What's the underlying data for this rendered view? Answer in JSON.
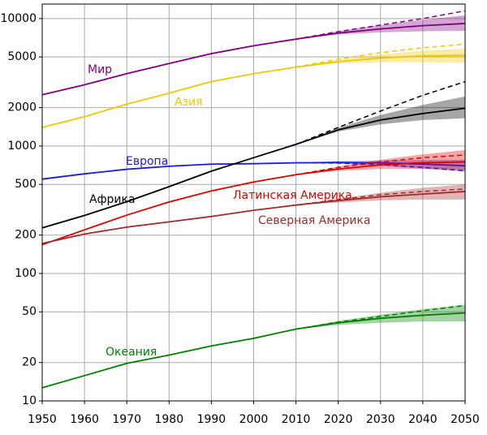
{
  "chart_data": {
    "type": "line",
    "log_scale_y": true,
    "grid": true,
    "x": [
      1950,
      1960,
      1970,
      1980,
      1990,
      2000,
      2010,
      2020,
      2030,
      2040,
      2050
    ],
    "projection_x": [
      2010,
      2020,
      2030,
      2040,
      2050
    ],
    "xlim": [
      1950,
      2050
    ],
    "xticks": [
      1950,
      1960,
      1970,
      1980,
      1990,
      2000,
      2010,
      2020,
      2030,
      2040,
      2050
    ],
    "ylim": [
      10,
      13000
    ],
    "yticks": [
      10,
      20,
      50,
      100,
      200,
      500,
      1000,
      2000,
      5000,
      10000
    ],
    "series": [
      {
        "name": "Мир",
        "color": "#800080",
        "values": [
          2525,
          3020,
          3700,
          4440,
          5310,
          6120,
          6900,
          7700,
          8300,
          8800,
          9150
        ],
        "projection": [
          6900,
          7900,
          8900,
          10000,
          11500
        ],
        "low": [
          6900,
          7500,
          7800,
          7950,
          8000
        ],
        "high": [
          6900,
          7950,
          8900,
          9800,
          10600
        ]
      },
      {
        "name": "Азия",
        "color": "#f0c800",
        "values": [
          1400,
          1700,
          2130,
          2600,
          3200,
          3700,
          4160,
          4600,
          4900,
          5100,
          5150
        ],
        "projection": [
          4160,
          4800,
          5400,
          5900,
          6300
        ],
        "low": [
          4160,
          4450,
          4550,
          4550,
          4500
        ],
        "high": [
          4160,
          4750,
          5250,
          5600,
          5800
        ]
      },
      {
        "name": "Европа",
        "color": "#1a1ae6",
        "values": [
          550,
          605,
          657,
          694,
          721,
          727,
          738,
          744,
          737,
          722,
          700
        ],
        "projection": [
          738,
          735,
          715,
          680,
          640
        ],
        "low": [
          738,
          725,
          700,
          665,
          630
        ],
        "high": [
          738,
          760,
          770,
          775,
          780
        ]
      },
      {
        "name": "Африка",
        "color": "#000000",
        "values": [
          228,
          285,
          366,
          480,
          635,
          810,
          1030,
          1340,
          1600,
          1800,
          1980
        ],
        "projection": [
          1030,
          1400,
          1880,
          2500,
          3200
        ],
        "low": [
          1030,
          1300,
          1480,
          1600,
          1650
        ],
        "high": [
          1030,
          1390,
          1750,
          2100,
          2450
        ]
      },
      {
        "name": "Латинская Америка",
        "color": "#e00000",
        "values": [
          168,
          220,
          287,
          364,
          444,
          522,
          596,
          660,
          710,
          740,
          750
        ],
        "projection": [
          596,
          680,
          750,
          810,
          850
        ],
        "low": [
          596,
          640,
          660,
          660,
          650
        ],
        "high": [
          596,
          690,
          780,
          860,
          930
        ]
      },
      {
        "name": "Северная Америка",
        "color": "#a52a2a",
        "values": [
          172,
          204,
          231,
          254,
          280,
          313,
          344,
          373,
          400,
          420,
          440
        ],
        "projection": [
          344,
          380,
          415,
          440,
          460
        ],
        "low": [
          344,
          360,
          375,
          380,
          380
        ],
        "high": [
          344,
          385,
          430,
          470,
          500
        ]
      },
      {
        "name": "Океания",
        "color": "#008000",
        "values": [
          12.7,
          15.8,
          19.7,
          22.9,
          27,
          31,
          36.6,
          41,
          44.5,
          47,
          49
        ],
        "projection": [
          36.6,
          41.5,
          46,
          51,
          56
        ],
        "low": [
          36.6,
          39.5,
          41,
          42,
          42
        ],
        "high": [
          36.6,
          42.5,
          47.5,
          52.5,
          57
        ]
      }
    ]
  }
}
